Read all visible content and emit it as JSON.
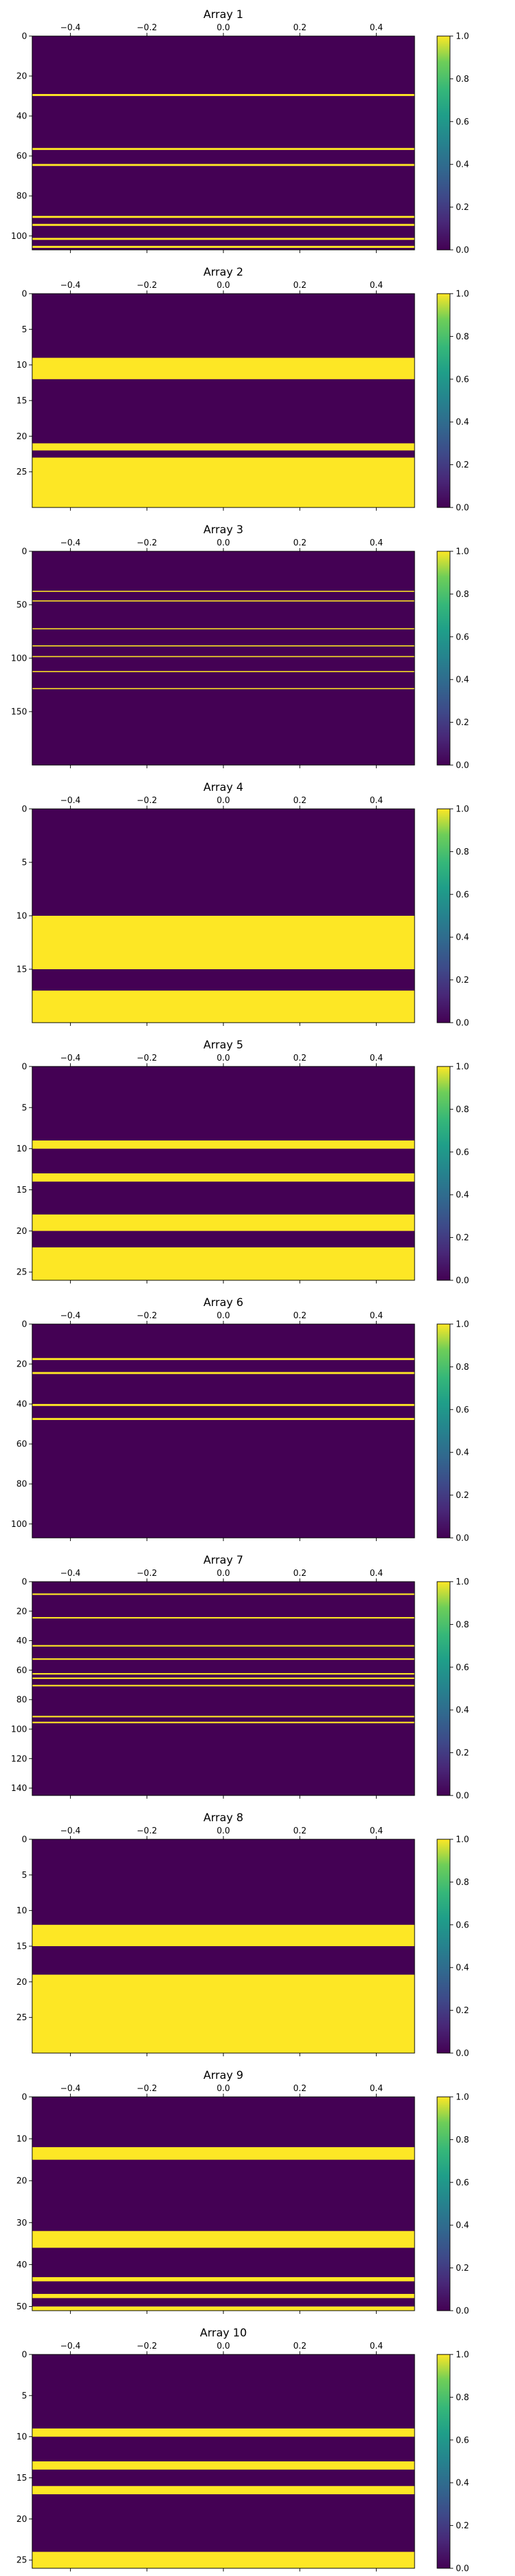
{
  "colors": {
    "low": "#440154",
    "high": "#fde725",
    "axis": "#000000"
  },
  "chart_data": [
    {
      "type": "heatmap",
      "title": "Array 1",
      "xlim": [
        -0.5,
        0.5
      ],
      "xticks": [
        "−0.4",
        "−0.2",
        "0.0",
        "0.2",
        "0.4"
      ],
      "xtick_values": [
        -0.4,
        -0.2,
        0.0,
        0.2,
        0.4
      ],
      "ylim": [
        0,
        107
      ],
      "yticks": [
        0,
        20,
        40,
        60,
        80,
        100
      ],
      "band_value": 1,
      "bands": [
        [
          29,
          30
        ],
        [
          56,
          57
        ],
        [
          64,
          65
        ],
        [
          90,
          91
        ],
        [
          94,
          95
        ],
        [
          101,
          102
        ],
        [
          105,
          106
        ]
      ],
      "colorbar": {
        "range": [
          0.0,
          1.0
        ],
        "ticks": [
          "0.0",
          "0.2",
          "0.4",
          "0.6",
          "0.8",
          "1.0"
        ],
        "colormap": "viridis"
      }
    },
    {
      "type": "heatmap",
      "title": "Array 2",
      "xlim": [
        -0.5,
        0.5
      ],
      "xticks": [
        "−0.4",
        "−0.2",
        "0.0",
        "0.2",
        "0.4"
      ],
      "xtick_values": [
        -0.4,
        -0.2,
        0.0,
        0.2,
        0.4
      ],
      "ylim": [
        0,
        30
      ],
      "yticks": [
        0,
        5,
        10,
        15,
        20,
        25
      ],
      "band_value": 1,
      "bands": [
        [
          9,
          12
        ],
        [
          21,
          22
        ],
        [
          23,
          30
        ]
      ],
      "colorbar": {
        "range": [
          0.0,
          1.0
        ],
        "ticks": [
          "0.0",
          "0.2",
          "0.4",
          "0.6",
          "0.8",
          "1.0"
        ],
        "colormap": "viridis"
      }
    },
    {
      "type": "heatmap",
      "title": "Array 3",
      "xlim": [
        -0.5,
        0.5
      ],
      "xticks": [
        "−0.4",
        "−0.2",
        "0.0",
        "0.2",
        "0.4"
      ],
      "xtick_values": [
        -0.4,
        -0.2,
        0.0,
        0.2,
        0.4
      ],
      "ylim": [
        0,
        200
      ],
      "yticks": [
        0,
        50,
        100,
        150
      ],
      "band_value": 1,
      "bands": [
        [
          37,
          38
        ],
        [
          46,
          47
        ],
        [
          72,
          73
        ],
        [
          88,
          89
        ],
        [
          98,
          99
        ],
        [
          112,
          113
        ],
        [
          128,
          129
        ]
      ],
      "colorbar": {
        "range": [
          0.0,
          1.0
        ],
        "ticks": [
          "0.0",
          "0.2",
          "0.4",
          "0.6",
          "0.8",
          "1.0"
        ],
        "colormap": "viridis"
      }
    },
    {
      "type": "heatmap",
      "title": "Array 4",
      "xlim": [
        -0.5,
        0.5
      ],
      "xticks": [
        "−0.4",
        "−0.2",
        "0.0",
        "0.2",
        "0.4"
      ],
      "xtick_values": [
        -0.4,
        -0.2,
        0.0,
        0.2,
        0.4
      ],
      "ylim": [
        0,
        20
      ],
      "yticks": [
        0,
        5,
        10,
        15
      ],
      "band_value": 1,
      "bands": [
        [
          10,
          15
        ],
        [
          17,
          20
        ]
      ],
      "colorbar": {
        "range": [
          0.0,
          1.0
        ],
        "ticks": [
          "0.0",
          "0.2",
          "0.4",
          "0.6",
          "0.8",
          "1.0"
        ],
        "colormap": "viridis"
      }
    },
    {
      "type": "heatmap",
      "title": "Array 5",
      "xlim": [
        -0.5,
        0.5
      ],
      "xticks": [
        "−0.4",
        "−0.2",
        "0.0",
        "0.2",
        "0.4"
      ],
      "xtick_values": [
        -0.4,
        -0.2,
        0.0,
        0.2,
        0.4
      ],
      "ylim": [
        0,
        26
      ],
      "yticks": [
        0,
        5,
        10,
        15,
        20,
        25
      ],
      "band_value": 1,
      "bands": [
        [
          9,
          10
        ],
        [
          13,
          14
        ],
        [
          18,
          20
        ],
        [
          22,
          26
        ]
      ],
      "colorbar": {
        "range": [
          0.0,
          1.0
        ],
        "ticks": [
          "0.0",
          "0.2",
          "0.4",
          "0.6",
          "0.8",
          "1.0"
        ],
        "colormap": "viridis"
      }
    },
    {
      "type": "heatmap",
      "title": "Array 6",
      "xlim": [
        -0.5,
        0.5
      ],
      "xticks": [
        "−0.4",
        "−0.2",
        "0.0",
        "0.2",
        "0.4"
      ],
      "xtick_values": [
        -0.4,
        -0.2,
        0.0,
        0.2,
        0.4
      ],
      "ylim": [
        0,
        107
      ],
      "yticks": [
        0,
        20,
        40,
        60,
        80,
        100
      ],
      "band_value": 1,
      "bands": [
        [
          17,
          18
        ],
        [
          24,
          25
        ],
        [
          40,
          41
        ],
        [
          47,
          48
        ]
      ],
      "colorbar": {
        "range": [
          0.0,
          1.0
        ],
        "ticks": [
          "0.0",
          "0.2",
          "0.4",
          "0.6",
          "0.8",
          "1.0"
        ],
        "colormap": "viridis"
      }
    },
    {
      "type": "heatmap",
      "title": "Array 7",
      "xlim": [
        -0.5,
        0.5
      ],
      "xticks": [
        "−0.4",
        "−0.2",
        "0.0",
        "0.2",
        "0.4"
      ],
      "xtick_values": [
        -0.4,
        -0.2,
        0.0,
        0.2,
        0.4
      ],
      "ylim": [
        0,
        145
      ],
      "yticks": [
        0,
        20,
        40,
        60,
        80,
        100,
        120,
        140
      ],
      "band_value": 1,
      "bands": [
        [
          8,
          9
        ],
        [
          24,
          25
        ],
        [
          43,
          44
        ],
        [
          52,
          53
        ],
        [
          62,
          63
        ],
        [
          65,
          66
        ],
        [
          70,
          71
        ],
        [
          91,
          92
        ],
        [
          95,
          96
        ]
      ],
      "colorbar": {
        "range": [
          0.0,
          1.0
        ],
        "ticks": [
          "0.0",
          "0.2",
          "0.4",
          "0.6",
          "0.8",
          "1.0"
        ],
        "colormap": "viridis"
      }
    },
    {
      "type": "heatmap",
      "title": "Array 8",
      "xlim": [
        -0.5,
        0.5
      ],
      "xticks": [
        "−0.4",
        "−0.2",
        "0.0",
        "0.2",
        "0.4"
      ],
      "xtick_values": [
        -0.4,
        -0.2,
        0.0,
        0.2,
        0.4
      ],
      "ylim": [
        0,
        30
      ],
      "yticks": [
        0,
        5,
        10,
        15,
        20,
        25
      ],
      "band_value": 1,
      "bands": [
        [
          12,
          15
        ],
        [
          19,
          30
        ]
      ],
      "colorbar": {
        "range": [
          0.0,
          1.0
        ],
        "ticks": [
          "0.0",
          "0.2",
          "0.4",
          "0.6",
          "0.8",
          "1.0"
        ],
        "colormap": "viridis"
      }
    },
    {
      "type": "heatmap",
      "title": "Array 9",
      "xlim": [
        -0.5,
        0.5
      ],
      "xticks": [
        "−0.4",
        "−0.2",
        "0.0",
        "0.2",
        "0.4"
      ],
      "xtick_values": [
        -0.4,
        -0.2,
        0.0,
        0.2,
        0.4
      ],
      "ylim": [
        0,
        51
      ],
      "yticks": [
        0,
        10,
        20,
        30,
        40,
        50
      ],
      "band_value": 1,
      "bands": [
        [
          12,
          15
        ],
        [
          32,
          36
        ],
        [
          43,
          44
        ],
        [
          47,
          48
        ],
        [
          50,
          51
        ]
      ],
      "colorbar": {
        "range": [
          0.0,
          1.0
        ],
        "ticks": [
          "0.0",
          "0.2",
          "0.4",
          "0.6",
          "0.8",
          "1.0"
        ],
        "colormap": "viridis"
      }
    },
    {
      "type": "heatmap",
      "title": "Array 10",
      "xlim": [
        -0.5,
        0.5
      ],
      "xticks": [
        "−0.4",
        "−0.2",
        "0.0",
        "0.2",
        "0.4"
      ],
      "xtick_values": [
        -0.4,
        -0.2,
        0.0,
        0.2,
        0.4
      ],
      "ylim": [
        0,
        26
      ],
      "yticks": [
        0,
        5,
        10,
        15,
        20,
        25
      ],
      "band_value": 1,
      "bands": [
        [
          9,
          10
        ],
        [
          13,
          14
        ],
        [
          16,
          17
        ],
        [
          24,
          26
        ]
      ],
      "colorbar": {
        "range": [
          0.0,
          1.0
        ],
        "ticks": [
          "0.0",
          "0.2",
          "0.4",
          "0.6",
          "0.8",
          "1.0"
        ],
        "colormap": "viridis"
      }
    }
  ]
}
